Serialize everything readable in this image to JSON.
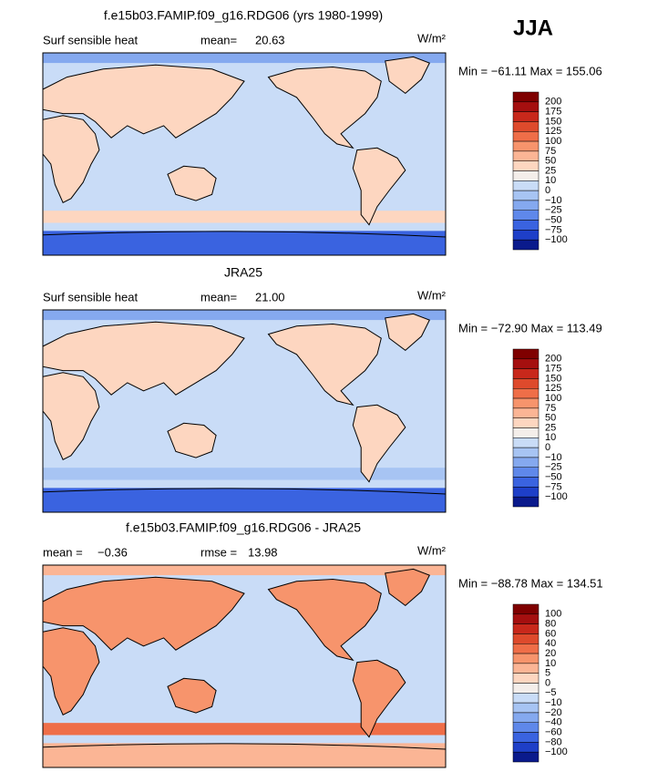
{
  "season": "JJA",
  "panels": [
    {
      "title": "f.e15b03.FAMIP.f09_g16.RDG06 (yrs 1980-1999)",
      "variable": "Surf sensible heat",
      "stat1_label": "mean=",
      "stat1_value": "20.63",
      "units": "W/m²",
      "minmax": "Min = −61.11 Max = 155.06",
      "colorbar_labels": [
        "200",
        "175",
        "150",
        "125",
        "100",
        "75",
        "50",
        "25",
        "10",
        "0",
        "−10",
        "−25",
        "−50",
        "−75",
        "−100"
      ]
    },
    {
      "title": "JRA25",
      "variable": "Surf sensible heat",
      "stat1_label": "mean=",
      "stat1_value": "21.00",
      "units": "W/m²",
      "minmax": "Min = −72.90 Max = 113.49",
      "colorbar_labels": [
        "200",
        "175",
        "150",
        "125",
        "100",
        "75",
        "50",
        "25",
        "10",
        "0",
        "−10",
        "−25",
        "−50",
        "−75",
        "−100"
      ]
    },
    {
      "title": "f.e15b03.FAMIP.f09_g16.RDG06 - JRA25",
      "stat1_label": "mean =",
      "stat1_value": "−0.36",
      "stat2_label": "rmse =",
      "stat2_value": "13.98",
      "units": "W/m²",
      "minmax": "Min = −88.78 Max = 134.51",
      "colorbar_labels": [
        "100",
        "80",
        "60",
        "40",
        "20",
        "10",
        "5",
        "0",
        "−5",
        "−10",
        "−20",
        "−40",
        "−60",
        "−80",
        "−100"
      ]
    }
  ],
  "colorbar_colors": [
    "#7f0000",
    "#a50f0f",
    "#c8281b",
    "#de4a2c",
    "#ef6e48",
    "#f7946c",
    "#fbb595",
    "#fdd6c0",
    "#f4eeea",
    "#c9dcf7",
    "#a7c4f3",
    "#85a9ef",
    "#5f88ea",
    "#3a63e0",
    "#1e3fc8",
    "#0a1a8c"
  ]
}
